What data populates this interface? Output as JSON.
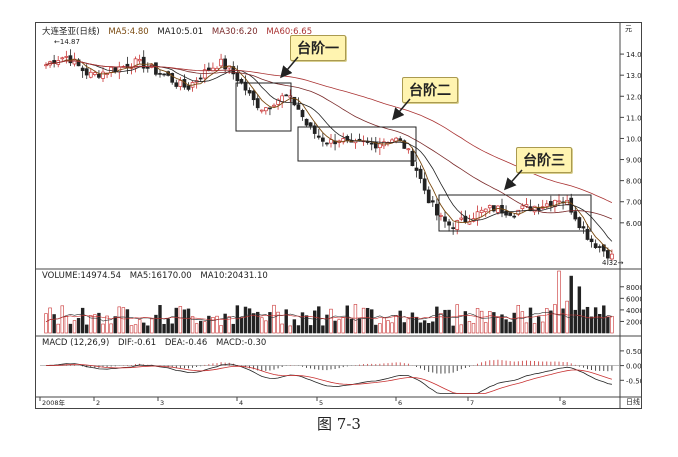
{
  "chart_data": [
    {
      "type": "candlestick",
      "stock_label": "大连圣亚(日线)",
      "ma_labels": [
        "MA5:4.80",
        "MA10:5.01",
        "MA30:6.20",
        "MA60:6.65"
      ],
      "ylim": [
        4.0,
        15.0
      ],
      "yticks": [
        "14.00",
        "13.00",
        "12.00",
        "11.00",
        "10.00",
        "9.00",
        "8.00",
        "7.00",
        "6.00"
      ],
      "annotations": {
        "high": "14.87",
        "low": "4.32"
      },
      "callouts": [
        "台阶一",
        "台阶二",
        "台阶三"
      ],
      "approx_close_path": [
        13.5,
        13.8,
        13.9,
        13.4,
        13.0,
        13.1,
        13.3,
        13.4,
        13.6,
        13.5,
        13.2,
        13.0,
        12.6,
        12.4,
        12.9,
        13.3,
        13.6,
        13.2,
        12.6,
        11.8,
        11.4,
        11.8,
        12.0,
        11.6,
        10.6,
        10.1,
        9.8,
        10.0,
        9.6,
        9.8,
        9.7,
        9.9,
        10.0,
        9.6,
        8.6,
        7.3,
        6.3,
        5.9,
        6.0,
        6.3,
        6.5,
        6.7,
        6.6,
        6.5,
        6.7,
        6.8,
        6.9,
        7.2,
        6.9,
        6.0,
        5.2,
        4.8,
        4.4
      ]
    },
    {
      "type": "bar",
      "title": "VOLUME:14974.54",
      "ma_labels": [
        "MA5:16170.00",
        "MA10:20431.10"
      ],
      "yticks": [
        "80000",
        "60000",
        "40000",
        "20000"
      ],
      "ylim": [
        0,
        90000
      ]
    },
    {
      "type": "line",
      "title": "MACD (12,26,9)",
      "labels": [
        "DIF:-0.61",
        "DEA:-0.46",
        "MACD:-0.30"
      ],
      "yticks": [
        "0.50",
        "0.00",
        "-0.50"
      ],
      "ylim": [
        -1.0,
        0.7
      ]
    }
  ],
  "x_axis_labels": [
    "2008年",
    "2",
    "3",
    "4",
    "5",
    "6",
    "7",
    "8"
  ],
  "corner_top": "元",
  "corner_bottom": "日线",
  "caption": "图 7-3",
  "colors": {
    "up": "#c83232",
    "down": "#222222",
    "ma5": "#7a4a10",
    "ma30": "#7a2a2a",
    "ma60": "#aa3333",
    "callout_bg": "#fff4b0"
  }
}
